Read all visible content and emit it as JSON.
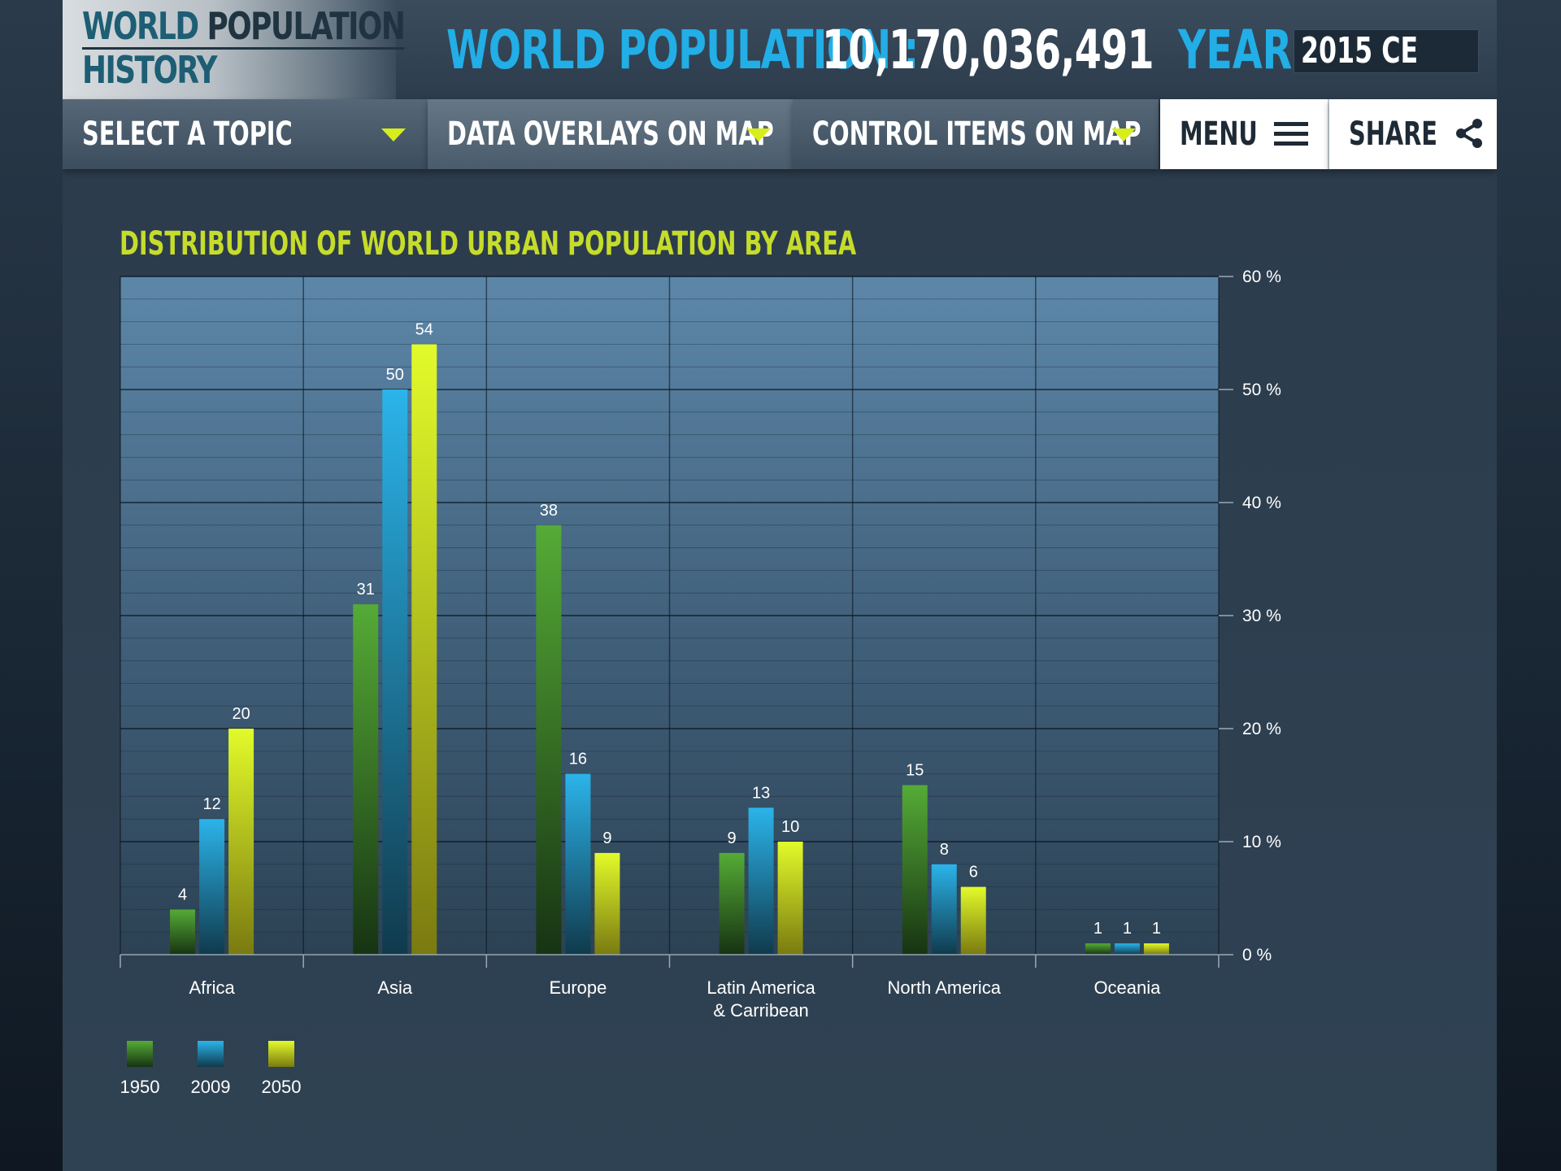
{
  "header": {
    "logo_line1_a": "WORLD",
    "logo_line1_b": "POPULATION",
    "logo_line2": "HISTORY",
    "population_label": "WORLD POPULATION :",
    "population_value": "10,170,036,491",
    "year_label": "YEAR :",
    "year_value": "2015 CE"
  },
  "nav": {
    "topic": "SELECT A TOPIC",
    "overlays": "DATA OVERLAYS ON MAP",
    "controls": "CONTROL ITEMS  ON  MAP",
    "menu": "MENU",
    "share": "SHARE"
  },
  "icons": {
    "dropdown": "chevron-down-icon",
    "menu": "hamburger-icon",
    "share": "share-icon"
  },
  "colors": {
    "accent_blue": "#22aee6",
    "accent_lime": "#d7ee1a",
    "title_lime": "#c6dc2a"
  },
  "chart_data": {
    "type": "bar",
    "title": "DISTRIBUTION OF WORLD URBAN POPULATION BY AREA",
    "categories": [
      "Africa",
      "Asia",
      "Europe",
      "Latin America & Carribean",
      "North America",
      "Oceania"
    ],
    "category_lines": [
      [
        "Africa"
      ],
      [
        "Asia"
      ],
      [
        "Europe"
      ],
      [
        "Latin America",
        "& Carribean"
      ],
      [
        "North America"
      ],
      [
        "Oceania"
      ]
    ],
    "series": [
      {
        "name": "1950",
        "values": [
          4,
          31,
          38,
          9,
          15,
          1
        ],
        "color_top": "#55ab36",
        "color_bottom": "#173313"
      },
      {
        "name": "2009",
        "values": [
          12,
          50,
          16,
          13,
          8,
          1
        ],
        "color_top": "#2bb4ea",
        "color_bottom": "#103a4c"
      },
      {
        "name": "2050",
        "values": [
          20,
          54,
          9,
          10,
          6,
          1
        ],
        "color_top": "#e2fb2a",
        "color_bottom": "#7a7a10"
      }
    ],
    "y_ticks": [
      "0 %",
      "10 %",
      "20 %",
      "30 %",
      "40 %",
      "50 %",
      "60 %"
    ],
    "ylim": [
      0,
      60
    ],
    "grid": true,
    "axis_position": "right",
    "legend_position": "bottom-left"
  }
}
